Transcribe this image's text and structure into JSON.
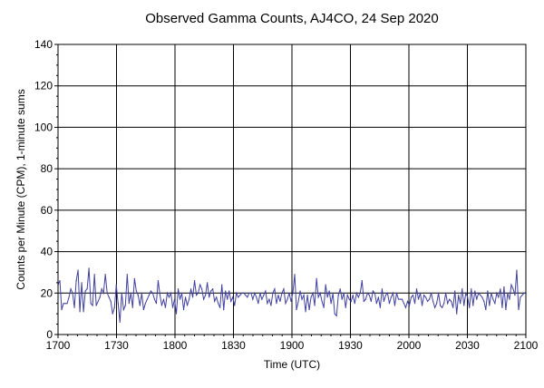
{
  "chart_data": {
    "type": "line",
    "title": "Observed Gamma Counts, AJ4CO, 24 Sep 2020",
    "xlabel": "Time (UTC)",
    "ylabel": "Counts per Minute (CPM), 1-minute sums",
    "x_tick_labels": [
      "1700",
      "1730",
      "1800",
      "1830",
      "1900",
      "1930",
      "2000",
      "2030",
      "2100"
    ],
    "y_ticks": [
      0,
      20,
      40,
      60,
      80,
      100,
      120,
      140
    ],
    "xlim_minutes_from_1700": [
      0,
      240
    ],
    "ylim": [
      0,
      140
    ],
    "grid": true,
    "line_color": "#4040a0",
    "series": [
      {
        "name": "",
        "values": [
          24,
          26,
          12,
          15,
          15,
          15,
          18,
          22,
          20,
          13,
          26,
          31,
          11,
          25,
          11,
          21,
          22,
          32,
          15,
          14,
          29,
          14,
          16,
          18,
          22,
          20,
          29,
          20,
          18,
          16,
          10,
          13,
          24,
          15,
          6,
          20,
          12,
          14,
          29,
          15,
          20,
          13,
          27,
          21,
          19,
          14,
          20,
          12,
          15,
          17,
          19,
          21,
          20,
          17,
          15,
          26,
          19,
          14,
          17,
          13,
          20,
          18,
          20,
          13,
          17,
          10,
          22,
          17,
          20,
          12,
          18,
          14,
          17,
          22,
          18,
          26,
          19,
          20,
          24,
          22,
          17,
          19,
          25,
          18,
          21,
          22,
          16,
          18,
          15,
          13,
          24,
          12,
          21,
          17,
          21,
          16,
          18,
          14,
          20,
          18,
          19,
          20,
          20,
          19,
          18,
          20,
          20,
          17,
          20,
          18,
          15,
          20,
          17,
          19,
          21,
          15,
          17,
          14,
          20,
          22,
          15,
          19,
          16,
          20,
          22,
          15,
          17,
          20,
          16,
          20,
          29,
          12,
          16,
          21,
          17,
          19,
          11,
          19,
          12,
          18,
          20,
          14,
          27,
          18,
          20,
          16,
          13,
          24,
          18,
          21,
          15,
          20,
          10,
          9,
          19,
          22,
          17,
          20,
          13,
          19,
          17,
          16,
          19,
          15,
          20,
          18,
          20,
          26,
          16,
          17,
          20,
          19,
          16,
          21,
          20,
          15,
          18,
          13,
          22,
          16,
          19,
          20,
          15,
          18,
          20,
          14,
          20,
          17,
          17,
          17,
          15,
          13,
          16,
          14,
          18,
          19,
          15,
          22,
          17,
          20,
          14,
          19,
          18,
          16,
          17,
          20,
          16,
          13,
          15,
          20,
          14,
          13,
          15,
          20,
          15,
          17,
          16,
          13,
          21,
          10,
          19,
          15,
          22,
          14,
          20,
          18,
          13,
          22,
          14,
          21,
          17,
          20,
          19,
          18,
          16,
          12,
          21,
          14,
          20,
          17,
          15,
          20,
          18,
          22,
          13,
          23,
          12,
          20,
          17,
          24,
          22,
          19,
          31,
          12,
          18,
          19,
          20,
          20
        ]
      }
    ]
  }
}
